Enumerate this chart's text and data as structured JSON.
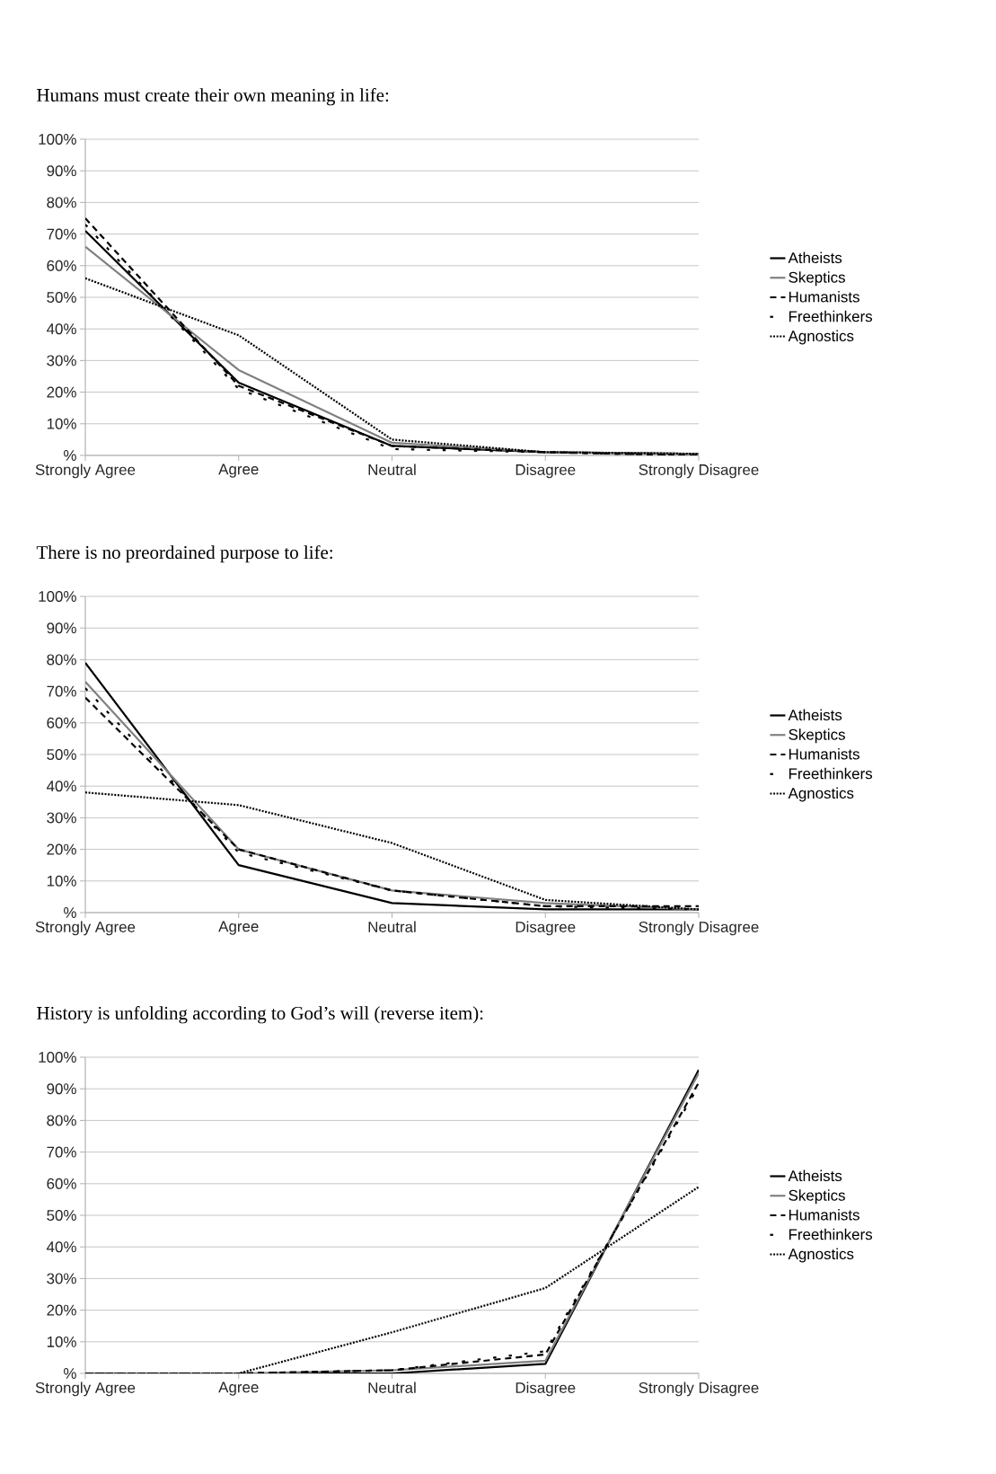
{
  "chart_data": [
    {
      "type": "line",
      "title": "Humans must create their own meaning in life:",
      "categories": [
        "Strongly Agree",
        "Agree",
        "Neutral",
        "Disagree",
        "Strongly Disagree"
      ],
      "ylim": [
        0,
        100
      ],
      "yticks": [
        {
          "value": 0,
          "label": "%"
        },
        {
          "value": 10,
          "label": "10%"
        },
        {
          "value": 20,
          "label": "20%"
        },
        {
          "value": 30,
          "label": "30%"
        },
        {
          "value": 40,
          "label": "40%"
        },
        {
          "value": 50,
          "label": "50%"
        },
        {
          "value": 60,
          "label": "60%"
        },
        {
          "value": 70,
          "label": "70%"
        },
        {
          "value": 80,
          "label": "80%"
        },
        {
          "value": 90,
          "label": "90%"
        },
        {
          "value": 100,
          "label": "100%"
        }
      ],
      "grid": "y",
      "legend": "right",
      "marker": "none",
      "series": [
        {
          "name": "Atheists",
          "color": "#000000",
          "line_style": "solid",
          "values": [
            71,
            23,
            3,
            1,
            0.5
          ]
        },
        {
          "name": "Skeptics",
          "color": "#808080",
          "line_style": "solid",
          "values": [
            66,
            27,
            4,
            1,
            0.5
          ]
        },
        {
          "name": "Humanists",
          "color": "#000000",
          "line_style": "dashed",
          "values": [
            75,
            22,
            3,
            1,
            0
          ]
        },
        {
          "name": "Freethinkers",
          "color": "#000000",
          "line_style": "sparse dotted",
          "values": [
            73,
            21,
            2,
            1,
            0
          ]
        },
        {
          "name": "Agnostics",
          "color": "#000000",
          "line_style": "dotted",
          "values": [
            56,
            38,
            5,
            1,
            0.5
          ]
        }
      ]
    },
    {
      "type": "line",
      "title": "There is no preordained purpose to life:",
      "categories": [
        "Strongly Agree",
        "Agree",
        "Neutral",
        "Disagree",
        "Strongly Disagree"
      ],
      "ylim": [
        0,
        100
      ],
      "yticks": [
        {
          "value": 0,
          "label": "%"
        },
        {
          "value": 10,
          "label": "10%"
        },
        {
          "value": 20,
          "label": "20%"
        },
        {
          "value": 30,
          "label": "30%"
        },
        {
          "value": 40,
          "label": "40%"
        },
        {
          "value": 50,
          "label": "50%"
        },
        {
          "value": 60,
          "label": "60%"
        },
        {
          "value": 70,
          "label": "70%"
        },
        {
          "value": 80,
          "label": "80%"
        },
        {
          "value": 90,
          "label": "90%"
        },
        {
          "value": 100,
          "label": "100%"
        }
      ],
      "grid": "y",
      "legend": "right",
      "marker": "none",
      "series": [
        {
          "name": "Atheists",
          "color": "#000000",
          "line_style": "solid",
          "values": [
            79,
            15,
            3,
            1,
            1
          ]
        },
        {
          "name": "Skeptics",
          "color": "#808080",
          "line_style": "solid",
          "values": [
            73,
            20,
            7,
            3,
            1
          ]
        },
        {
          "name": "Humanists",
          "color": "#000000",
          "line_style": "dashed",
          "values": [
            68,
            20,
            7,
            2,
            2
          ]
        },
        {
          "name": "Freethinkers",
          "color": "#000000",
          "line_style": "sparse dotted",
          "values": [
            71,
            19,
            7,
            2,
            1
          ]
        },
        {
          "name": "Agnostics",
          "color": "#000000",
          "line_style": "dotted",
          "values": [
            38,
            34,
            22,
            4,
            1
          ]
        }
      ]
    },
    {
      "type": "line",
      "title": "History is unfolding according to God’s will (reverse item):",
      "categories": [
        "Strongly Agree",
        "Agree",
        "Neutral",
        "Disagree",
        "Strongly Disagree"
      ],
      "ylim": [
        0,
        100
      ],
      "yticks": [
        {
          "value": 0,
          "label": "%"
        },
        {
          "value": 10,
          "label": "10%"
        },
        {
          "value": 20,
          "label": "20%"
        },
        {
          "value": 30,
          "label": "30%"
        },
        {
          "value": 40,
          "label": "40%"
        },
        {
          "value": 50,
          "label": "50%"
        },
        {
          "value": 60,
          "label": "60%"
        },
        {
          "value": 70,
          "label": "70%"
        },
        {
          "value": 80,
          "label": "80%"
        },
        {
          "value": 90,
          "label": "90%"
        },
        {
          "value": 100,
          "label": "100%"
        }
      ],
      "grid": "y",
      "legend": "right",
      "marker": "none",
      "series": [
        {
          "name": "Atheists",
          "color": "#000000",
          "line_style": "solid",
          "values": [
            0,
            0,
            0,
            3,
            96
          ]
        },
        {
          "name": "Skeptics",
          "color": "#808080",
          "line_style": "solid",
          "values": [
            0,
            0,
            1,
            4,
            95
          ]
        },
        {
          "name": "Humanists",
          "color": "#000000",
          "line_style": "dashed",
          "values": [
            0,
            0,
            1,
            6,
            92
          ]
        },
        {
          "name": "Freethinkers",
          "color": "#000000",
          "line_style": "sparse dotted",
          "values": [
            0,
            0,
            1,
            7,
            91
          ]
        },
        {
          "name": "Agnostics",
          "color": "#000000",
          "line_style": "dotted",
          "values": [
            0,
            0,
            13,
            27,
            59
          ]
        }
      ]
    }
  ]
}
